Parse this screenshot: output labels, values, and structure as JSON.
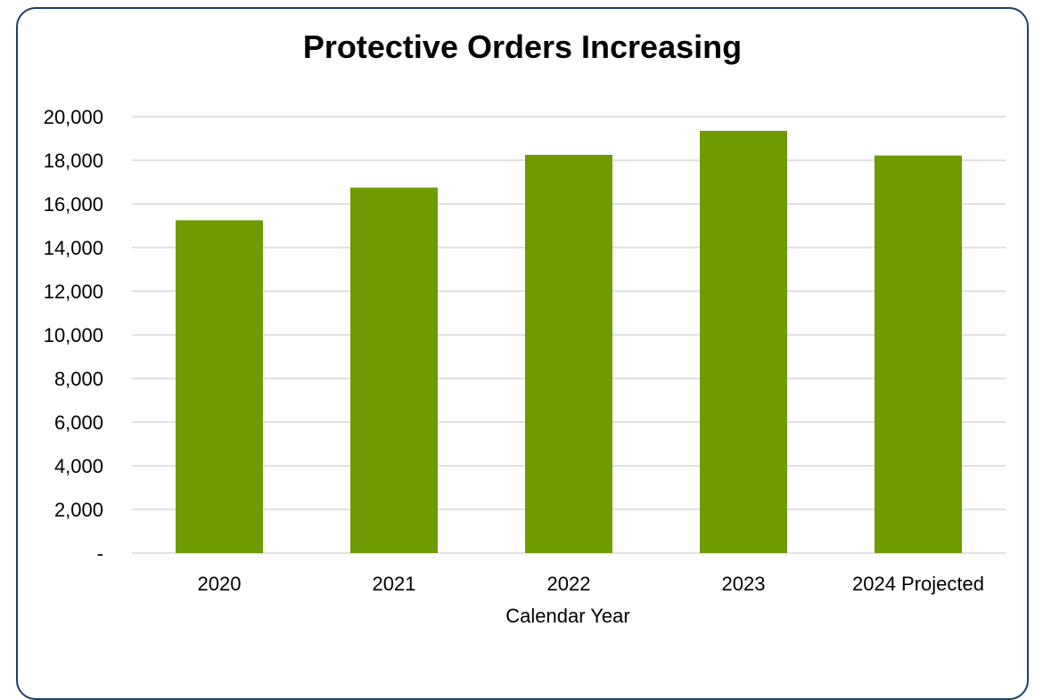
{
  "chart_data": {
    "type": "bar",
    "title": "Protective Orders Increasing",
    "xlabel": "Calendar Year",
    "ylabel": "",
    "categories": [
      "2020",
      "2021",
      "2022",
      "2023",
      "2024 Projected"
    ],
    "values": [
      15250,
      16750,
      18250,
      19350,
      18220
    ],
    "ylim": [
      0,
      20000
    ],
    "yticks": [
      0,
      2000,
      4000,
      6000,
      8000,
      10000,
      12000,
      14000,
      16000,
      18000,
      20000
    ],
    "ytick_labels": [
      "-",
      "2,000",
      "4,000",
      "6,000",
      "8,000",
      "10,000",
      "12,000",
      "14,000",
      "16,000",
      "18,000",
      "20,000"
    ],
    "grid": true,
    "legend": "none",
    "bar_color": "#6e9a02",
    "border_color": "#1f3f66"
  }
}
